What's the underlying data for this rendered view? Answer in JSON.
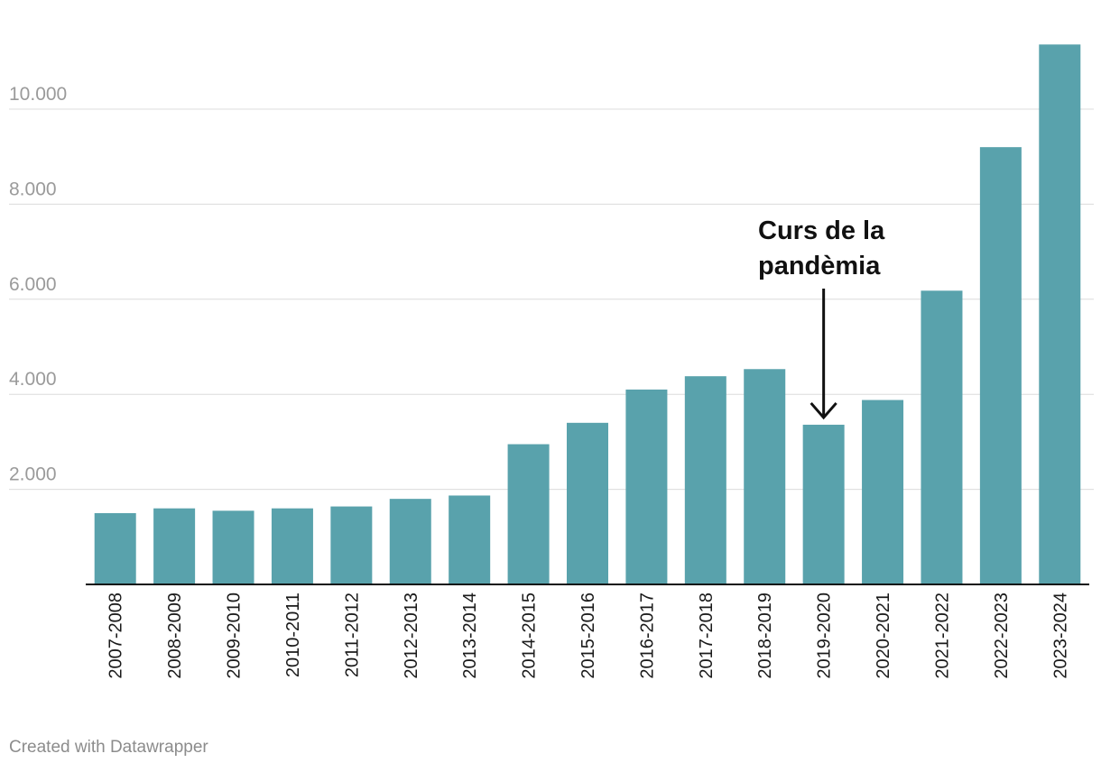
{
  "chart_data": {
    "type": "bar",
    "categories": [
      "2007-2008",
      "2008-2009",
      "2009-2010",
      "2010-2011",
      "2011-2012",
      "2012-2013",
      "2013-2014",
      "2014-2015",
      "2015-2016",
      "2016-2017",
      "2017-2018",
      "2018-2019",
      "2019-2020",
      "2020-2021",
      "2021-2022",
      "2022-2023",
      "2023-2024"
    ],
    "values": [
      1500,
      1600,
      1550,
      1600,
      1640,
      1800,
      1870,
      2950,
      3400,
      4100,
      4380,
      4530,
      3360,
      3880,
      6180,
      9200,
      11360
    ],
    "yticks": [
      2000,
      4000,
      6000,
      8000,
      10000
    ],
    "ytick_labels": [
      "2.000",
      "4.000",
      "6.000",
      "8.000",
      "10.000"
    ],
    "ylim": [
      0,
      11500
    ],
    "grid": true,
    "bar_color": "#59a2ac",
    "annotation": {
      "lines": [
        "Curs de la",
        "pandèmia"
      ],
      "target_category": "2019-2020"
    },
    "title": "",
    "xlabel": "",
    "ylabel": ""
  },
  "footer": {
    "credit": "Created with Datawrapper"
  }
}
